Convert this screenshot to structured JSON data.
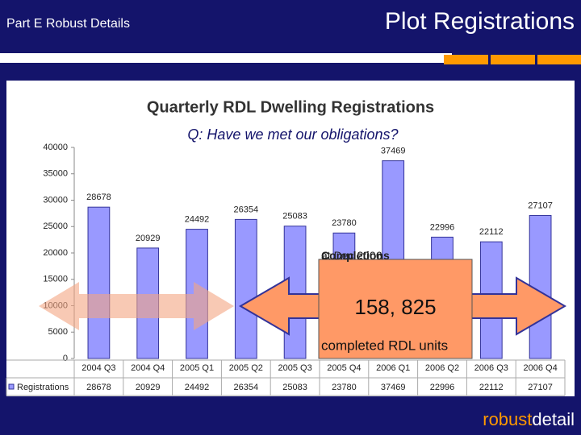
{
  "header": {
    "section": "Part E Robust Details",
    "title": "Plot Registrations"
  },
  "chart_data": {
    "type": "bar",
    "title": "Quarterly RDL Dwelling Registrations",
    "subtitle": "Q: Have we met our obligations?",
    "categories": [
      "2004 Q3",
      "2004 Q4",
      "2005 Q1",
      "2005 Q2",
      "2005 Q3",
      "2005 Q4",
      "2006 Q1",
      "2006 Q2",
      "2006 Q3",
      "2006 Q4"
    ],
    "series": [
      {
        "name": "Registrations",
        "color": "#9999ff",
        "values": [
          28678,
          20929,
          24492,
          26354,
          25083,
          23780,
          37469,
          22996,
          22112,
          27107
        ]
      }
    ],
    "ylim": [
      0,
      40000
    ],
    "yticks": [
      0,
      5000,
      10000,
      15000,
      20000,
      25000,
      30000,
      35000,
      40000
    ]
  },
  "callout": {
    "lead": "Completions",
    "lead_rest": "at Dec 2006",
    "total": "158, 825",
    "unit": "completed RDL units"
  },
  "footer": {
    "brand_a": "robust",
    "brand_b": "detail"
  }
}
